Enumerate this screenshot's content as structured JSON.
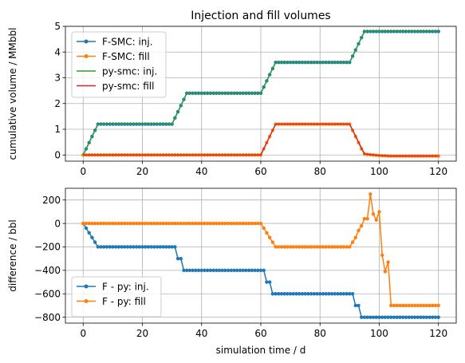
{
  "chart_data": [
    {
      "type": "line",
      "title": "Injection and fill volumes",
      "xlabel": "",
      "ylabel": "cumulative volume / MMbbl",
      "xlim": [
        -6,
        126
      ],
      "ylim": [
        -0.24,
        5.0
      ],
      "xticks": [
        0,
        20,
        40,
        60,
        80,
        100,
        120
      ],
      "yticks": [
        0,
        1,
        2,
        3,
        4,
        5
      ],
      "grid": true,
      "legend": "upper-left",
      "series": [
        {
          "name": "F-SMC: inj.",
          "color": "#1f77b4",
          "marker": true,
          "x": [
            0,
            1,
            2,
            3,
            4,
            5,
            6,
            7,
            8,
            9,
            10,
            11,
            12,
            13,
            14,
            15,
            16,
            17,
            18,
            19,
            20,
            21,
            22,
            23,
            24,
            25,
            26,
            27,
            28,
            29,
            30,
            31,
            32,
            33,
            34,
            35,
            36,
            37,
            38,
            39,
            40,
            41,
            42,
            43,
            44,
            45,
            46,
            47,
            48,
            49,
            50,
            51,
            52,
            53,
            54,
            55,
            56,
            57,
            58,
            59,
            60,
            61,
            62,
            63,
            64,
            65,
            66,
            67,
            68,
            69,
            70,
            71,
            72,
            73,
            74,
            75,
            76,
            77,
            78,
            79,
            80,
            81,
            82,
            83,
            84,
            85,
            86,
            87,
            88,
            89,
            90,
            91,
            92,
            93,
            94,
            95,
            96,
            97,
            98,
            99,
            100,
            101,
            102,
            103,
            104,
            105,
            106,
            107,
            108,
            109,
            110,
            111,
            112,
            113,
            114,
            115,
            116,
            117,
            118,
            119,
            120
          ],
          "y": [
            0,
            0.24,
            0.48,
            0.72,
            0.96,
            1.2,
            1.2,
            1.2,
            1.2,
            1.2,
            1.2,
            1.2,
            1.2,
            1.2,
            1.2,
            1.2,
            1.2,
            1.2,
            1.2,
            1.2,
            1.2,
            1.2,
            1.2,
            1.2,
            1.2,
            1.2,
            1.2,
            1.2,
            1.2,
            1.2,
            1.2,
            1.44,
            1.68,
            1.92,
            2.16,
            2.4,
            2.4,
            2.4,
            2.4,
            2.4,
            2.4,
            2.4,
            2.4,
            2.4,
            2.4,
            2.4,
            2.4,
            2.4,
            2.4,
            2.4,
            2.4,
            2.4,
            2.4,
            2.4,
            2.4,
            2.4,
            2.4,
            2.4,
            2.4,
            2.4,
            2.4,
            2.64,
            2.88,
            3.12,
            3.36,
            3.6,
            3.6,
            3.6,
            3.6,
            3.6,
            3.6,
            3.6,
            3.6,
            3.6,
            3.6,
            3.6,
            3.6,
            3.6,
            3.6,
            3.6,
            3.6,
            3.6,
            3.6,
            3.6,
            3.6,
            3.6,
            3.6,
            3.6,
            3.6,
            3.6,
            3.6,
            3.84,
            4.08,
            4.32,
            4.56,
            4.8,
            4.8,
            4.8,
            4.8,
            4.8,
            4.8,
            4.8,
            4.8,
            4.8,
            4.8,
            4.8,
            4.8,
            4.8,
            4.8,
            4.8,
            4.8,
            4.8,
            4.8,
            4.8,
            4.8,
            4.8,
            4.8,
            4.8,
            4.8,
            4.8,
            4.8
          ]
        },
        {
          "name": "F-SMC: fill",
          "color": "#ff7f0e",
          "marker": true,
          "x": [
            0,
            1,
            2,
            3,
            4,
            5,
            6,
            7,
            8,
            9,
            10,
            11,
            12,
            13,
            14,
            15,
            16,
            17,
            18,
            19,
            20,
            21,
            22,
            23,
            24,
            25,
            26,
            27,
            28,
            29,
            30,
            31,
            32,
            33,
            34,
            35,
            36,
            37,
            38,
            39,
            40,
            41,
            42,
            43,
            44,
            45,
            46,
            47,
            48,
            49,
            50,
            51,
            52,
            53,
            54,
            55,
            56,
            57,
            58,
            59,
            60,
            61,
            62,
            63,
            64,
            65,
            66,
            67,
            68,
            69,
            70,
            71,
            72,
            73,
            74,
            75,
            76,
            77,
            78,
            79,
            80,
            81,
            82,
            83,
            84,
            85,
            86,
            87,
            88,
            89,
            90,
            91,
            92,
            93,
            94,
            95,
            96,
            97,
            98,
            99,
            100,
            101,
            102,
            103,
            104,
            105,
            106,
            107,
            108,
            109,
            110,
            111,
            112,
            113,
            114,
            115,
            116,
            117,
            118,
            119,
            120
          ],
          "y": [
            0,
            0,
            0,
            0,
            0,
            0,
            0,
            0,
            0,
            0,
            0,
            0,
            0,
            0,
            0,
            0,
            0,
            0,
            0,
            0,
            0,
            0,
            0,
            0,
            0,
            0,
            0,
            0,
            0,
            0,
            0,
            0,
            0,
            0,
            0,
            0,
            0,
            0,
            0,
            0,
            0,
            0,
            0,
            0,
            0,
            0,
            0,
            0,
            0,
            0,
            0,
            0,
            0,
            0,
            0,
            0,
            0,
            0,
            0,
            0,
            0,
            0.24,
            0.48,
            0.72,
            0.96,
            1.2,
            1.2,
            1.2,
            1.2,
            1.2,
            1.2,
            1.2,
            1.2,
            1.2,
            1.2,
            1.2,
            1.2,
            1.2,
            1.2,
            1.2,
            1.2,
            1.2,
            1.2,
            1.2,
            1.2,
            1.2,
            1.2,
            1.2,
            1.2,
            1.2,
            1.2,
            0.96,
            0.72,
            0.48,
            0.24,
            0.04,
            0.02,
            0.01,
            0,
            -0.01,
            -0.02,
            -0.03,
            -0.03,
            -0.04,
            -0.04,
            -0.04,
            -0.04,
            -0.04,
            -0.04,
            -0.04,
            -0.04,
            -0.04,
            -0.04,
            -0.04,
            -0.04,
            -0.04,
            -0.04,
            -0.04,
            -0.04,
            -0.04,
            -0.04
          ]
        },
        {
          "name": "py-smc: inj.",
          "color": "#2ca02c",
          "marker": false,
          "x": [
            0,
            5,
            30,
            35,
            60,
            65,
            90,
            95,
            120
          ],
          "y": [
            0,
            1.2,
            1.2,
            2.4,
            2.4,
            3.6,
            3.6,
            4.8,
            4.8
          ]
        },
        {
          "name": "py-smc: fill",
          "color": "#d62728",
          "marker": false,
          "x": [
            0,
            60,
            65,
            90,
            95,
            98,
            102,
            105,
            120
          ],
          "y": [
            0,
            0,
            1.2,
            1.2,
            0.04,
            0,
            -0.03,
            -0.04,
            -0.04
          ]
        }
      ]
    },
    {
      "type": "line",
      "title": "",
      "xlabel": "simulation time / d",
      "ylabel": "difference /   bbl",
      "xlim": [
        -6,
        126
      ],
      "ylim": [
        -850,
        300
      ],
      "xticks": [
        0,
        20,
        40,
        60,
        80,
        100,
        120
      ],
      "yticks": [
        200,
        0,
        -200,
        -400,
        -600,
        -800
      ],
      "grid": true,
      "legend": "lower-left",
      "series": [
        {
          "name": "F - py: inj.",
          "color": "#1f77b4",
          "marker": true,
          "x": [
            0,
            1,
            2,
            3,
            4,
            5,
            6,
            7,
            8,
            9,
            10,
            11,
            12,
            13,
            14,
            15,
            16,
            17,
            18,
            19,
            20,
            21,
            22,
            23,
            24,
            25,
            26,
            27,
            28,
            29,
            30,
            31,
            32,
            33,
            34,
            35,
            36,
            37,
            38,
            39,
            40,
            41,
            42,
            43,
            44,
            45,
            46,
            47,
            48,
            49,
            50,
            51,
            52,
            53,
            54,
            55,
            56,
            57,
            58,
            59,
            60,
            61,
            62,
            63,
            64,
            65,
            66,
            67,
            68,
            69,
            70,
            71,
            72,
            73,
            74,
            75,
            76,
            77,
            78,
            79,
            80,
            81,
            82,
            83,
            84,
            85,
            86,
            87,
            88,
            89,
            90,
            91,
            92,
            93,
            94,
            95,
            96,
            97,
            98,
            99,
            100,
            101,
            102,
            103,
            104,
            105,
            106,
            107,
            108,
            109,
            110,
            111,
            112,
            113,
            114,
            115,
            116,
            117,
            118,
            119,
            120
          ],
          "y": [
            0,
            -40,
            -80,
            -120,
            -160,
            -200,
            -200,
            -200,
            -200,
            -200,
            -200,
            -200,
            -200,
            -200,
            -200,
            -200,
            -200,
            -200,
            -200,
            -200,
            -200,
            -200,
            -200,
            -200,
            -200,
            -200,
            -200,
            -200,
            -200,
            -200,
            -200,
            -200,
            -300,
            -300,
            -400,
            -400,
            -400,
            -400,
            -400,
            -400,
            -400,
            -400,
            -400,
            -400,
            -400,
            -400,
            -400,
            -400,
            -400,
            -400,
            -400,
            -400,
            -400,
            -400,
            -400,
            -400,
            -400,
            -400,
            -400,
            -400,
            -400,
            -400,
            -500,
            -500,
            -600,
            -600,
            -600,
            -600,
            -600,
            -600,
            -600,
            -600,
            -600,
            -600,
            -600,
            -600,
            -600,
            -600,
            -600,
            -600,
            -600,
            -600,
            -600,
            -600,
            -600,
            -600,
            -600,
            -600,
            -600,
            -600,
            -600,
            -600,
            -700,
            -700,
            -800,
            -800,
            -800,
            -800,
            -800,
            -800,
            -800,
            -800,
            -800,
            -800,
            -800,
            -800,
            -800,
            -800,
            -800,
            -800,
            -800,
            -800,
            -800,
            -800,
            -800,
            -800,
            -800,
            -800,
            -800,
            -800,
            -800
          ]
        },
        {
          "name": "F - py: fill",
          "color": "#ff7f0e",
          "marker": true,
          "x": [
            0,
            1,
            2,
            3,
            4,
            5,
            6,
            7,
            8,
            9,
            10,
            11,
            12,
            13,
            14,
            15,
            16,
            17,
            18,
            19,
            20,
            21,
            22,
            23,
            24,
            25,
            26,
            27,
            28,
            29,
            30,
            31,
            32,
            33,
            34,
            35,
            36,
            37,
            38,
            39,
            40,
            41,
            42,
            43,
            44,
            45,
            46,
            47,
            48,
            49,
            50,
            51,
            52,
            53,
            54,
            55,
            56,
            57,
            58,
            59,
            60,
            61,
            62,
            63,
            64,
            65,
            66,
            67,
            68,
            69,
            70,
            71,
            72,
            73,
            74,
            75,
            76,
            77,
            78,
            79,
            80,
            81,
            82,
            83,
            84,
            85,
            86,
            87,
            88,
            89,
            90,
            91,
            92,
            93,
            94,
            95,
            96,
            97,
            98,
            99,
            100,
            101,
            102,
            103,
            104,
            105,
            106,
            107,
            108,
            109,
            110,
            111,
            112,
            113,
            114,
            115,
            116,
            117,
            118,
            119,
            120
          ],
          "y": [
            0,
            0,
            0,
            0,
            0,
            0,
            0,
            0,
            0,
            0,
            0,
            0,
            0,
            0,
            0,
            0,
            0,
            0,
            0,
            0,
            0,
            0,
            0,
            0,
            0,
            0,
            0,
            0,
            0,
            0,
            0,
            0,
            0,
            0,
            0,
            0,
            0,
            0,
            0,
            0,
            0,
            0,
            0,
            0,
            0,
            0,
            0,
            0,
            0,
            0,
            0,
            0,
            0,
            0,
            0,
            0,
            0,
            0,
            0,
            0,
            0,
            -40,
            -80,
            -120,
            -160,
            -200,
            -200,
            -200,
            -200,
            -200,
            -200,
            -200,
            -200,
            -200,
            -200,
            -200,
            -200,
            -200,
            -200,
            -200,
            -200,
            -200,
            -200,
            -200,
            -200,
            -200,
            -200,
            -200,
            -200,
            -200,
            -200,
            -160,
            -120,
            -60,
            -20,
            40,
            40,
            250,
            80,
            30,
            100,
            -270,
            -410,
            -330,
            -700,
            -700,
            -700,
            -700,
            -700,
            -700,
            -700,
            -700,
            -700,
            -700,
            -700,
            -700,
            -700,
            -700,
            -700,
            -700,
            -700
          ]
        }
      ]
    }
  ]
}
